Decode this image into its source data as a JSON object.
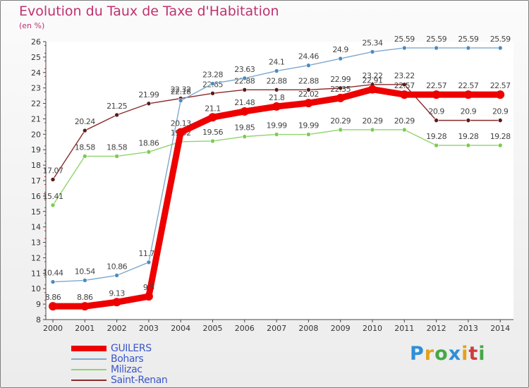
{
  "header": {
    "title": "Evolution du Taux de Taxe d'Habitation",
    "unit": "(en %)"
  },
  "brand": {
    "name": "Proxiti",
    "letters": [
      {
        "ch": "P",
        "color": "#2e8fd8"
      },
      {
        "ch": "r",
        "color": "#e2a21c"
      },
      {
        "ch": "o",
        "color": "#45a845"
      },
      {
        "ch": "x",
        "color": "#2e8fd8"
      },
      {
        "ch": "i",
        "color": "#e2a21c"
      },
      {
        "ch": "t",
        "color": "#d23c3c"
      },
      {
        "ch": "i",
        "color": "#45a845"
      }
    ]
  },
  "chart_data": {
    "type": "line",
    "x": [
      "2000",
      "2001",
      "2002",
      "2003",
      "2004",
      "2005",
      "2006",
      "2007",
      "2008",
      "2009",
      "2010",
      "2011",
      "2012",
      "2013",
      "2014"
    ],
    "ylim": [
      8,
      26
    ],
    "yticks": [
      8,
      9,
      10,
      11,
      12,
      13,
      14,
      15,
      16,
      17,
      18,
      19,
      20,
      21,
      22,
      23,
      24,
      25,
      26
    ],
    "grid": false,
    "legend_position": "bottom-left",
    "series": [
      {
        "name": "Saint-Renan",
        "color": "#8b2a2a",
        "marker": "#5e1a1a",
        "width": 1.4,
        "radius": 3,
        "values": [
          17.07,
          20.24,
          21.25,
          21.99,
          22.32,
          22.65,
          22.88,
          22.88,
          22.88,
          22.99,
          23.22,
          23.22,
          20.9,
          20.9,
          20.9
        ]
      },
      {
        "name": "Milizac",
        "color": "#8fd46c",
        "marker": "#7dcc52",
        "width": 1.4,
        "radius": 3,
        "values": [
          15.41,
          18.58,
          18.58,
          18.86,
          19.52,
          19.56,
          19.85,
          19.99,
          19.99,
          20.29,
          20.29,
          20.29,
          19.28,
          19.28,
          19.28
        ]
      },
      {
        "name": "Bohars",
        "color": "#7ea8cc",
        "marker": "#4b8bc1",
        "width": 1.4,
        "radius": 3,
        "values": [
          10.44,
          10.54,
          10.86,
          11.71,
          22.18,
          23.28,
          23.63,
          24.1,
          24.46,
          24.9,
          25.34,
          25.59,
          25.59,
          25.59,
          25.59
        ]
      },
      {
        "name": "GUILERS",
        "color": "#ee0000",
        "marker": "#ee0000",
        "width": 9,
        "radius": 6,
        "values": [
          8.86,
          8.86,
          9.13,
          9.5,
          20.13,
          21.1,
          21.48,
          21.8,
          22.02,
          22.35,
          22.91,
          22.57,
          22.57,
          22.57,
          22.57
        ]
      }
    ]
  }
}
